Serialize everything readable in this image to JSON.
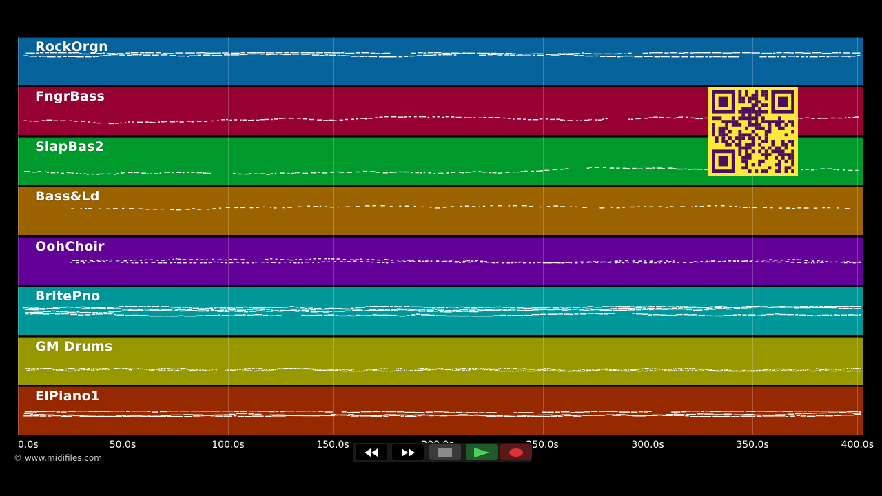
{
  "tracks": [
    {
      "name": "RockOrgn",
      "color": "#05629b",
      "style": "dense-top"
    },
    {
      "name": "FngrBass",
      "color": "#970032",
      "style": "bass"
    },
    {
      "name": "SlapBas2",
      "color": "#009a2c",
      "style": "bass"
    },
    {
      "name": "Bass&Ld",
      "color": "#9b6200",
      "style": "lead"
    },
    {
      "name": "OohChoir",
      "color": "#620097",
      "style": "choir"
    },
    {
      "name": "BritePno",
      "color": "#00979a",
      "style": "piano"
    },
    {
      "name": "GM Drums",
      "color": "#979700",
      "style": "drums"
    },
    {
      "name": "ElPiano1",
      "color": "#972900",
      "style": "epiano"
    }
  ],
  "timeline": {
    "ticks": [
      "0.0s",
      "50.0s",
      "100.0s",
      "150.0s",
      "200.0s",
      "250.0s",
      "300.0s",
      "350.0s",
      "400.0s"
    ]
  },
  "copyright": "© www.midifiles.com",
  "transport": {
    "rewind_icon": "rewind-icon",
    "fastforward_icon": "fast-forward-icon",
    "stop_icon": "stop-icon",
    "play_icon": "play-icon",
    "record_icon": "record-icon"
  },
  "qr_colors": {
    "background": "#ffe83a",
    "modules": "#4a1060"
  }
}
